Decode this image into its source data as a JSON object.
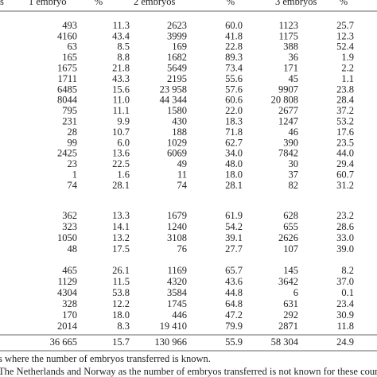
{
  "table": {
    "header": [
      "s",
      "1 embryo",
      "%",
      "2 embryos",
      "%",
      "3 embryos",
      "%"
    ],
    "groups": [
      [
        [
          "493",
          "11.3",
          "2623",
          "60.0",
          "1123",
          "25.7"
        ],
        [
          "4160",
          "43.4",
          "3999",
          "41.8",
          "1175",
          "12.3"
        ],
        [
          "63",
          "8.5",
          "169",
          "22.8",
          "388",
          "52.4"
        ],
        [
          "165",
          "8.8",
          "1682",
          "89.3",
          "36",
          "1.9"
        ],
        [
          "1675",
          "21.8",
          "5649",
          "73.4",
          "171",
          "2.2"
        ],
        [
          "1711",
          "43.3",
          "2195",
          "55.6",
          "45",
          "1.1"
        ],
        [
          "6485",
          "15.6",
          "23 958",
          "57.6",
          "9907",
          "23.8"
        ],
        [
          "8044",
          "11.0",
          "44 344",
          "60.6",
          "20 808",
          "28.4"
        ],
        [
          "795",
          "11.1",
          "1580",
          "22.0",
          "2677",
          "37.2"
        ],
        [
          "231",
          "9.9",
          "430",
          "18.3",
          "1247",
          "53.2"
        ],
        [
          "28",
          "10.7",
          "188",
          "71.8",
          "46",
          "17.6"
        ],
        [
          "99",
          "6.0",
          "1029",
          "62.7",
          "390",
          "23.5"
        ],
        [
          "2425",
          "13.6",
          "6069",
          "34.0",
          "7842",
          "44.0"
        ],
        [
          "23",
          "22.5",
          "49",
          "48.0",
          "30",
          "29.4"
        ],
        [
          "1",
          "1.6",
          "11",
          "18.0",
          "37",
          "60.7"
        ],
        [
          "74",
          "28.1",
          "74",
          "28.1",
          "82",
          "31.2"
        ]
      ],
      [
        [
          "362",
          "13.3",
          "1679",
          "61.9",
          "628",
          "23.2"
        ],
        [
          "323",
          "14.1",
          "1240",
          "54.2",
          "655",
          "28.6"
        ],
        [
          "1050",
          "13.2",
          "3108",
          "39.1",
          "2626",
          "33.0"
        ],
        [
          "48",
          "17.5",
          "76",
          "27.7",
          "107",
          "39.0"
        ]
      ],
      [
        [
          "465",
          "26.1",
          "1169",
          "65.7",
          "145",
          "8.2"
        ],
        [
          "1129",
          "11.5",
          "4320",
          "43.6",
          "3642",
          "37.0"
        ],
        [
          "4304",
          "53.8",
          "3584",
          "44.8",
          "6",
          "0.1"
        ],
        [
          "328",
          "12.2",
          "1745",
          "64.8",
          "631",
          "23.4"
        ],
        [
          "170",
          "18.0",
          "446",
          "47.2",
          "292",
          "30.9"
        ],
        [
          "2014",
          "8.3",
          "19 410",
          "79.9",
          "2871",
          "11.8"
        ]
      ]
    ],
    "total": [
      "36 665",
      "15.7",
      "130 966",
      "55.9",
      "58 304",
      "24.9"
    ],
    "footnotes": [
      "s where the number of embryos transferred is known.",
      "The Netherlands and Norway as the number of embryos transferred is not known for these countri"
    ]
  }
}
